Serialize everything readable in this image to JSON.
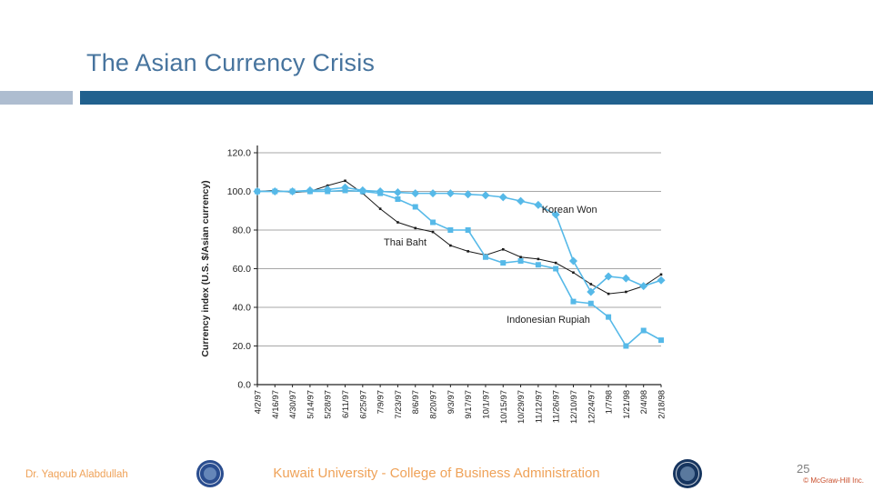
{
  "slide": {
    "title": "The Asian Currency Crisis",
    "footer": {
      "author": "Dr. Yaqoub Alabdullah",
      "institution": "Kuwait University - College of Business Administration",
      "page_number": "25",
      "copyright": "© McGraw-Hill Inc."
    }
  },
  "icons": {
    "left_seal": "kuwait-university-seal",
    "right_seal": "publisher-seal"
  },
  "colors": {
    "title": "#47749e",
    "accent_bar": "#21618e",
    "accent_bar_light": "#aebdd0",
    "footer_text": "#efa258",
    "page_number": "#7f7f7f",
    "copyright": "#c94f2c",
    "series_blue": "#56b9e8",
    "series_black": "#1a1a1a",
    "gridline": "#8a8a8a"
  },
  "chart_data": {
    "type": "line",
    "title": "",
    "xlabel": "",
    "ylabel": "Currency index (U.S. $/Asian currency)",
    "ylim": [
      0,
      120
    ],
    "ytick_step": 20,
    "ytick_format_decimals": 1,
    "grid": true,
    "legend_position": "none-inline-annotations",
    "categories": [
      "4/2/97",
      "4/16/97",
      "4/30/97",
      "5/14/97",
      "5/28/97",
      "6/11/97",
      "6/25/97",
      "7/9/97",
      "7/23/97",
      "8/6/97",
      "8/20/97",
      "9/3/97",
      "9/17/97",
      "10/1/97",
      "10/15/97",
      "10/29/97",
      "11/12/97",
      "11/26/97",
      "12/10/97",
      "12/24/97",
      "1/7/98",
      "1/21/98",
      "2/4/98",
      "2/18/98"
    ],
    "series": [
      {
        "name": "Thai Baht",
        "color": "#1a1a1a",
        "marker": "dot",
        "values": [
          100,
          100.5,
          99.5,
          100,
          103,
          105.5,
          99,
          91,
          84,
          81,
          79,
          72,
          69,
          67,
          70,
          66,
          65,
          63,
          58,
          52,
          47,
          48,
          51,
          57
        ]
      },
      {
        "name": "Indonesian Rupiah",
        "color": "#56b9e8",
        "marker": "square",
        "values": [
          100,
          100,
          100,
          100,
          100,
          100.5,
          100,
          99,
          96,
          92,
          84,
          80,
          80,
          66,
          63,
          64,
          62,
          60,
          43,
          42,
          35,
          20,
          28,
          23
        ]
      },
      {
        "name": "Korean Won",
        "color": "#56b9e8",
        "marker": "diamond",
        "values": [
          100,
          100,
          100,
          100.5,
          101,
          102,
          100.5,
          100,
          99.5,
          99,
          99,
          99,
          98.5,
          98,
          97,
          95,
          93,
          88,
          64,
          48,
          56,
          55,
          51,
          54
        ]
      }
    ],
    "annotations": [
      {
        "label": "Korean Won",
        "x": 16.2,
        "y": 89
      },
      {
        "label": "Thai Baht",
        "x": 7.2,
        "y": 72
      },
      {
        "label": "Indonesian Rupiah",
        "x": 14.2,
        "y": 32
      }
    ]
  }
}
